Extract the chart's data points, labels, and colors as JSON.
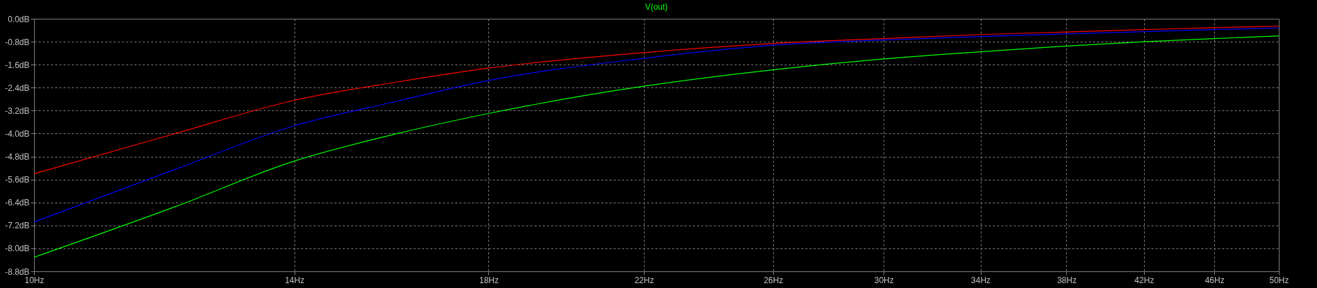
{
  "chart_data": {
    "type": "line",
    "title": "V(out)",
    "x": [
      10,
      12,
      14,
      16,
      18,
      22,
      26,
      30,
      34,
      38,
      42,
      46,
      50
    ],
    "series": [
      {
        "color": "#ff0000",
        "values": [
          -5.4,
          -4.0,
          -2.84,
          -2.2,
          -1.72,
          -1.18,
          -0.86,
          -0.69,
          -0.55,
          -0.46,
          -0.38,
          -0.31,
          -0.26
        ]
      },
      {
        "color": "#0000ff",
        "values": [
          -7.08,
          -5.25,
          -3.73,
          -2.87,
          -2.15,
          -1.38,
          -0.92,
          -0.74,
          -0.62,
          -0.53,
          -0.45,
          -0.38,
          -0.32
        ]
      },
      {
        "color": "#00ff00",
        "values": [
          -8.31,
          -6.55,
          -4.96,
          -4.0,
          -3.3,
          -2.35,
          -1.78,
          -1.4,
          -1.15,
          -0.95,
          -0.8,
          -0.69,
          -0.6
        ]
      }
    ],
    "xlim": [
      10,
      50
    ],
    "xticks": [
      {
        "value": 10,
        "label": "10Hz"
      },
      {
        "value": 14,
        "label": "14Hz"
      },
      {
        "value": 18,
        "label": "18Hz"
      },
      {
        "value": 22,
        "label": "22Hz"
      },
      {
        "value": 26,
        "label": "26Hz"
      },
      {
        "value": 30,
        "label": "30Hz"
      },
      {
        "value": 34,
        "label": "34Hz"
      },
      {
        "value": 38,
        "label": "38Hz"
      },
      {
        "value": 42,
        "label": "42Hz"
      },
      {
        "value": 46,
        "label": "46Hz"
      },
      {
        "value": 50,
        "label": "50Hz"
      }
    ],
    "ylim": [
      -8.8,
      0
    ],
    "yticks": [
      {
        "value": 0,
        "label": "0.0dB"
      },
      {
        "value": -0.8,
        "label": "-0.8dB"
      },
      {
        "value": -1.6,
        "label": "-1.6dB"
      },
      {
        "value": -2.4,
        "label": "-2.4dB"
      },
      {
        "value": -3.2,
        "label": "-3.2dB"
      },
      {
        "value": -4.0,
        "label": "-4.0dB"
      },
      {
        "value": -4.8,
        "label": "-4.8dB"
      },
      {
        "value": -5.6,
        "label": "-5.6dB"
      },
      {
        "value": -6.4,
        "label": "-6.4dB"
      },
      {
        "value": -7.2,
        "label": "-7.2dB"
      },
      {
        "value": -8.0,
        "label": "-8.0dB"
      },
      {
        "value": -8.8,
        "label": "-8.8dB"
      }
    ],
    "log": "x",
    "grid": true,
    "line_style": "solid",
    "marker": "none"
  }
}
